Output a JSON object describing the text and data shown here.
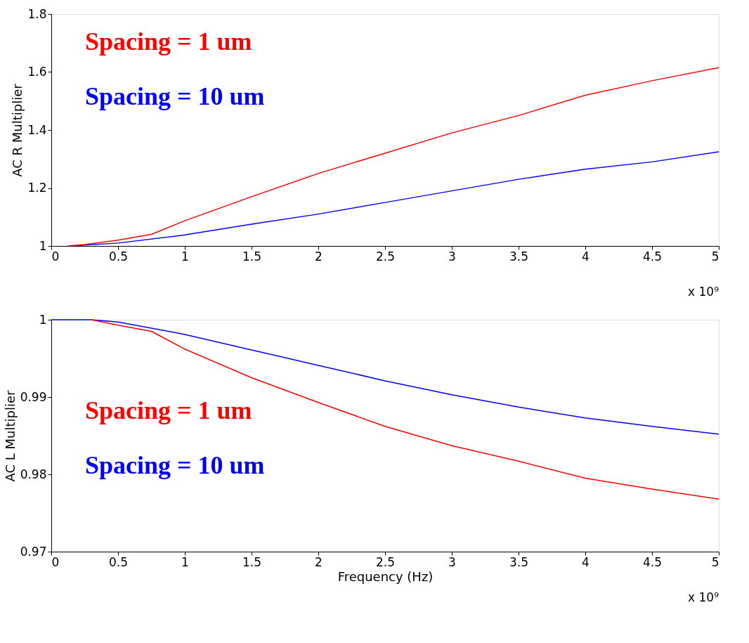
{
  "chart_data": [
    {
      "type": "line",
      "ylabel": "AC R Multiplier",
      "xlim": [
        0,
        5
      ],
      "ylim": [
        1,
        1.8
      ],
      "xticks": [
        0,
        0.5,
        1,
        1.5,
        2,
        2.5,
        3,
        3.5,
        4,
        4.5,
        5
      ],
      "yticks": [
        1,
        1.2,
        1.4,
        1.6,
        1.8
      ],
      "grid": false,
      "legend": "top left",
      "annotations": [
        "x 10⁹"
      ],
      "series": [
        {
          "name": "Spacing = 1 um",
          "color": "#ff0000",
          "x": [
            0.12,
            0.25,
            0.5,
            0.75,
            1,
            1.5,
            2,
            2.5,
            3,
            3.5,
            4,
            4.5,
            5
          ],
          "values": [
            1.0,
            1.005,
            1.02,
            1.04,
            1.087,
            1.17,
            1.25,
            1.32,
            1.39,
            1.45,
            1.52,
            1.57,
            1.615
          ]
        },
        {
          "name": "Spacing = 10 um",
          "color": "#0000ff",
          "x": [
            0.15,
            0.5,
            1,
            1.5,
            2,
            2.5,
            3,
            3.5,
            4,
            4.5,
            5
          ],
          "values": [
            1.0,
            1.01,
            1.038,
            1.075,
            1.11,
            1.15,
            1.19,
            1.23,
            1.265,
            1.29,
            1.325
          ]
        }
      ]
    },
    {
      "type": "line",
      "xlabel": "Frequency (Hz)",
      "ylabel": "AC L Multiplier",
      "xlim": [
        0,
        5
      ],
      "ylim": [
        0.97,
        1
      ],
      "xticks": [
        0,
        0.5,
        1,
        1.5,
        2,
        2.5,
        3,
        3.5,
        4,
        4.5,
        5
      ],
      "yticks": [
        0.97,
        0.98,
        0.99,
        1
      ],
      "grid": false,
      "legend": "left",
      "annotations": [
        "x 10⁹"
      ],
      "series": [
        {
          "name": "Spacing = 1 um",
          "color": "#ff0000",
          "x": [
            0.3,
            0.5,
            0.75,
            1,
            1.5,
            2,
            2.5,
            3,
            3.5,
            4,
            4.5,
            5
          ],
          "values": [
            1.0,
            0.9993,
            0.9985,
            0.9962,
            0.9925,
            0.9893,
            0.9862,
            0.9837,
            0.9817,
            0.9795,
            0.9781,
            0.9768
          ]
        },
        {
          "name": "Spacing = 10 um",
          "color": "#0000ff",
          "x": [
            0,
            0.3,
            0.5,
            1,
            1.5,
            2,
            2.5,
            3,
            3.5,
            4,
            4.5,
            5
          ],
          "values": [
            1.0,
            1.0,
            0.9997,
            0.9981,
            0.9961,
            0.9941,
            0.9921,
            0.9903,
            0.9887,
            0.9873,
            0.9862,
            0.9852
          ]
        }
      ]
    }
  ]
}
